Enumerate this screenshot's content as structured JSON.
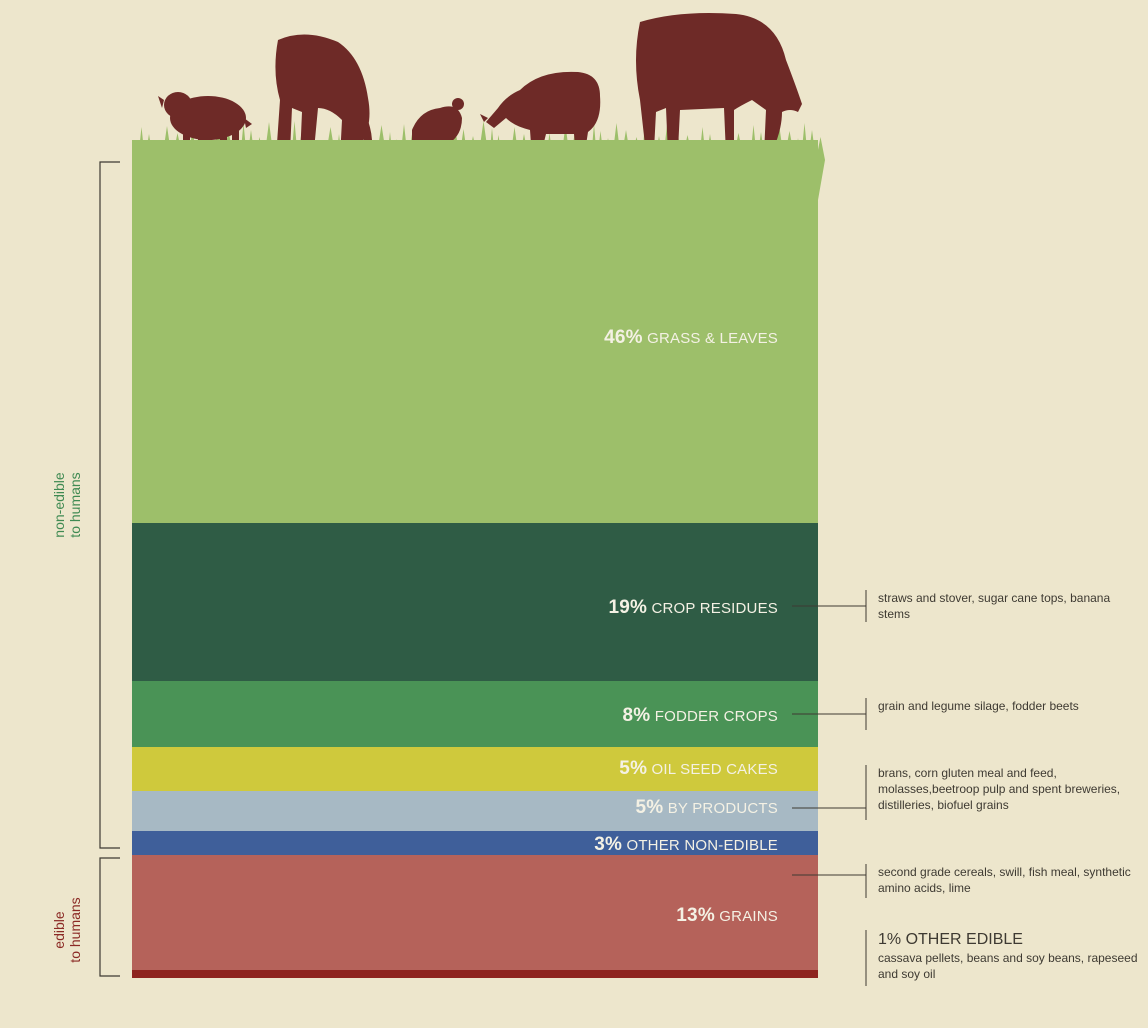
{
  "colors": {
    "background": "#ede6cc",
    "grass": "#9dbf6a",
    "grass_dark": "#8cb35a",
    "animal": "#6e2a27",
    "bracket": "#3e3a32",
    "non_edible_label": "#3f8a52",
    "edible_label": "#8b2a25"
  },
  "icons": {
    "animals": [
      "pig-icon",
      "goat-icon",
      "chicken-icon",
      "sheep-icon",
      "cow-icon"
    ]
  },
  "chart_data": {
    "type": "stacked-bar",
    "title": "",
    "unit": "%",
    "segments": [
      {
        "id": "grass",
        "value": 46,
        "pct_label": "46%",
        "name": "GRASS & LEAVES",
        "color": "#9dbf6a",
        "group": "non-edible",
        "note": ""
      },
      {
        "id": "crop",
        "value": 19,
        "pct_label": "19%",
        "name": "CROP RESIDUES",
        "color": "#2f5c45",
        "group": "non-edible",
        "note": "straws and stover, sugar cane tops, banana stems"
      },
      {
        "id": "fodder",
        "value": 8,
        "pct_label": "8%",
        "name": "FODDER CROPS",
        "color": "#4a9356",
        "group": "non-edible",
        "note": "grain and legume silage, fodder beets"
      },
      {
        "id": "oilseed",
        "value": 5,
        "pct_label": "5%",
        "name": "OIL SEED CAKES",
        "color": "#cfc93c",
        "group": "non-edible",
        "note": ""
      },
      {
        "id": "byproducts",
        "value": 5,
        "pct_label": "5%",
        "name": "BY PRODUCTS",
        "color": "#a7b9c4",
        "group": "non-edible",
        "note": "brans, corn gluten meal and feed, molasses,beetroop pulp and spent breweries, distilleries, biofuel grains"
      },
      {
        "id": "othernon",
        "value": 3,
        "pct_label": "3%",
        "name": "OTHER NON-EDIBLE",
        "color": "#3f5f9a",
        "group": "non-edible",
        "note": "second grade cereals, swill, fish meal, synthetic amino acids, lime"
      },
      {
        "id": "grains",
        "value": 13,
        "pct_label": "13%",
        "name": "GRAINS",
        "color": "#b5625a",
        "group": "edible",
        "note": ""
      },
      {
        "id": "otheredible",
        "value": 1,
        "pct_label": "1%",
        "name": "OTHER EDIBLE",
        "color": "#8e241f",
        "group": "edible",
        "note": "cassava pellets, beans and soy beans, rapeseed and soy oil"
      }
    ],
    "groups": [
      {
        "id": "non-edible",
        "label_line1": "non-edible",
        "label_line2": "to humans"
      },
      {
        "id": "edible",
        "label_line1": "edible",
        "label_line2": "to humans"
      }
    ]
  }
}
